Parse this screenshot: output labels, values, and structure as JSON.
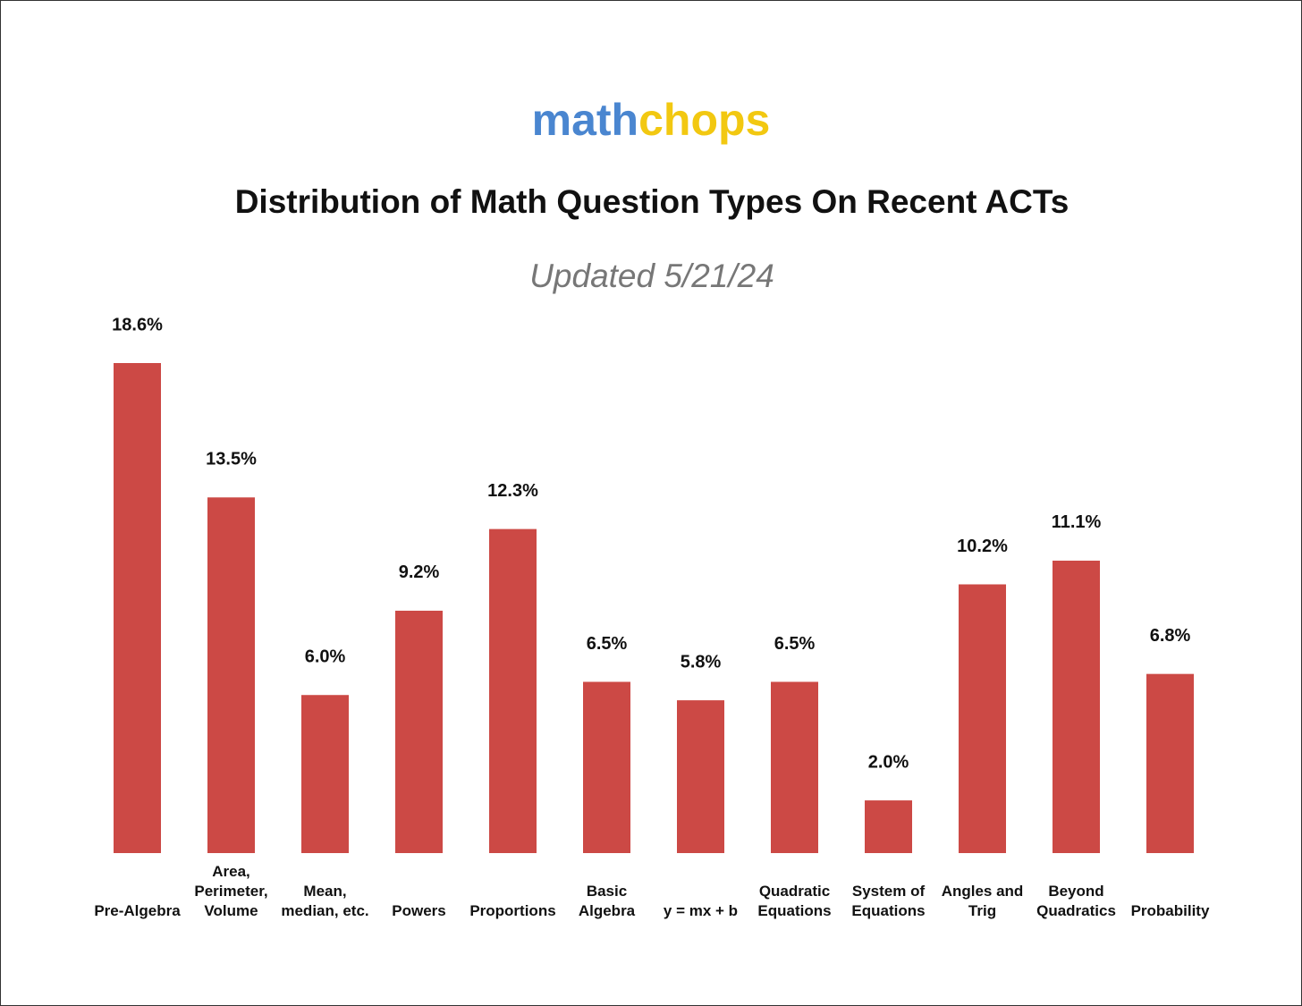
{
  "logo": {
    "part1": "math",
    "part1_color": "#4a86d0",
    "part2": "chops",
    "part2_color": "#f2c811"
  },
  "chart_data": {
    "type": "bar",
    "title": "Distribution of Math Question Types On Recent ACTs",
    "subtitle": "Updated 5/21/24",
    "categories": [
      "Pre-Algebra",
      "Area, Perimeter, Volume",
      "Mean, median, etc.",
      "Powers",
      "Proportions",
      "Basic Algebra",
      "y = mx + b",
      "Quadratic Equations",
      "System of Equations",
      "Angles and Trig",
      "Beyond Quadratics",
      "Probability"
    ],
    "values": [
      18.6,
      13.5,
      6.0,
      9.2,
      12.3,
      6.5,
      5.8,
      6.5,
      2.0,
      10.2,
      11.1,
      6.8
    ],
    "value_labels": [
      "18.6%",
      "13.5%",
      "6.0%",
      "9.2%",
      "12.3%",
      "6.5%",
      "5.8%",
      "6.5%",
      "2.0%",
      "10.2%",
      "11.1%",
      "6.8%"
    ],
    "color": "#cc4945"
  }
}
